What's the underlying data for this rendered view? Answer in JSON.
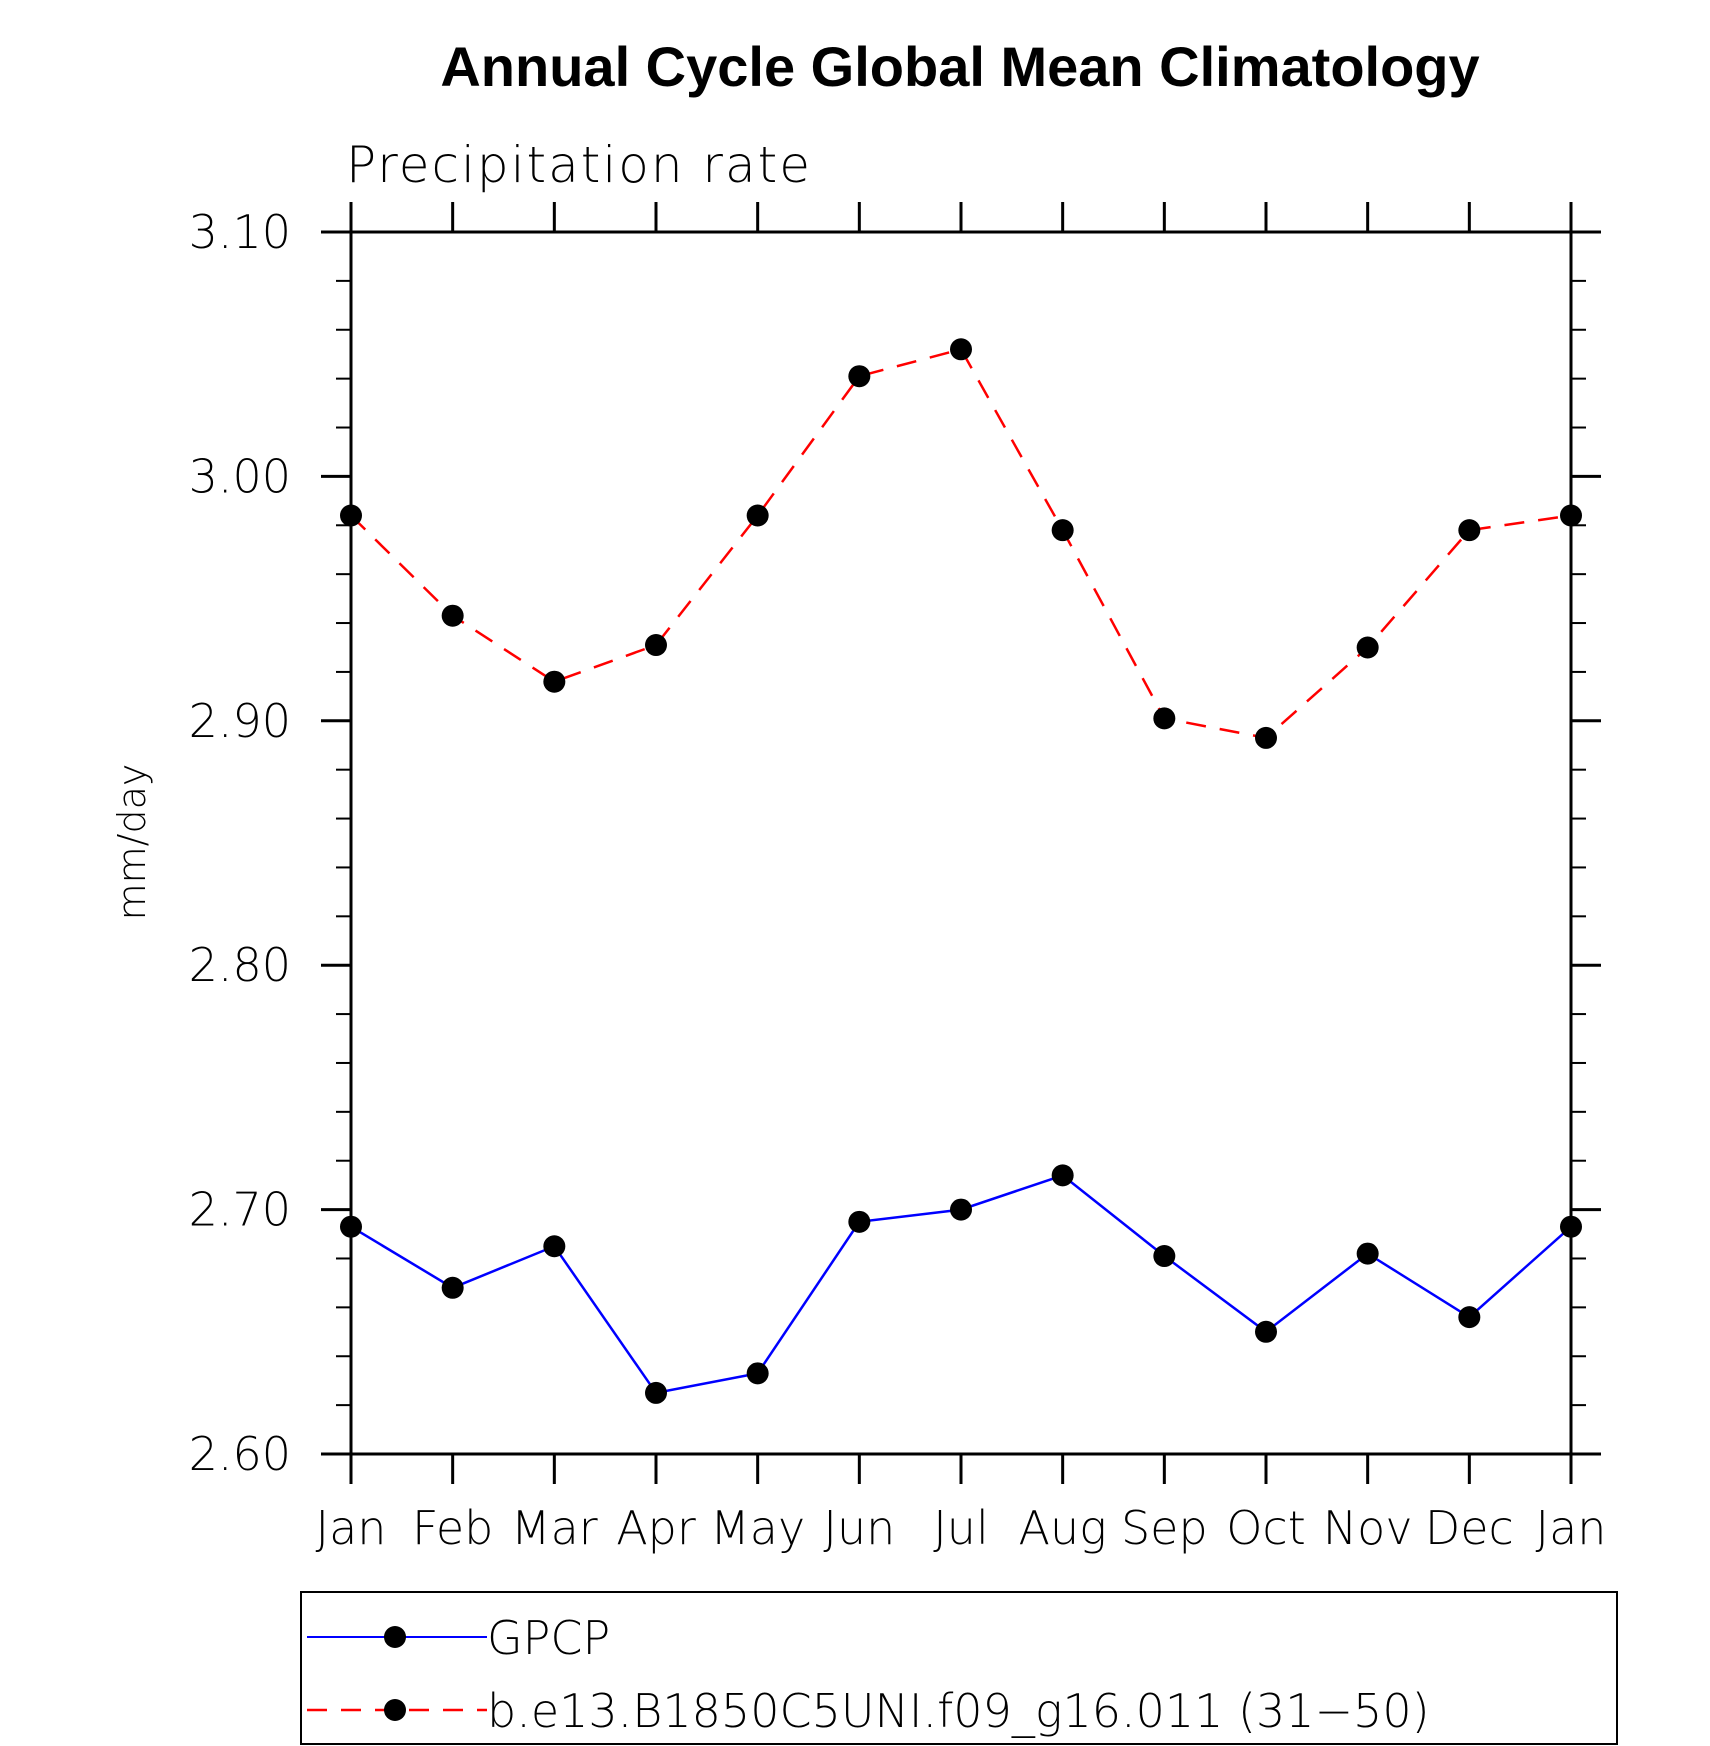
{
  "chart_data": {
    "type": "line",
    "title": "Annual Cycle Global Mean Climatology",
    "subtitle": "Precipitation rate",
    "ylabel": "mm/day",
    "xlabel": "",
    "categories": [
      "Jan",
      "Feb",
      "Mar",
      "Apr",
      "May",
      "Jun",
      "Jul",
      "Aug",
      "Sep",
      "Oct",
      "Nov",
      "Dec",
      "Jan"
    ],
    "ylim": [
      2.6,
      3.1
    ],
    "yticks": [
      "2.60",
      "2.70",
      "2.80",
      "2.90",
      "3.00",
      "3.10"
    ],
    "ytick_values": [
      2.6,
      2.7,
      2.8,
      2.9,
      3.0,
      3.1
    ],
    "minor_tick_step": 0.02,
    "grid": false,
    "legend_position": "bottom",
    "series": [
      {
        "name": "GPCP",
        "color": "#0000ff",
        "line_style": "solid",
        "marker": "filled-circle",
        "values": [
          2.693,
          2.668,
          2.685,
          2.625,
          2.633,
          2.695,
          2.7,
          2.714,
          2.681,
          2.65,
          2.682,
          2.656,
          2.693
        ]
      },
      {
        "name": "b.e13.B1850C5UNI.f09_g16.011 (31−50)",
        "color": "#ff0000",
        "line_style": "dashed",
        "marker": "filled-circle",
        "values": [
          2.984,
          2.943,
          2.916,
          2.931,
          2.984,
          3.041,
          3.052,
          2.978,
          2.901,
          2.893,
          2.93,
          2.978,
          2.984
        ]
      }
    ]
  }
}
